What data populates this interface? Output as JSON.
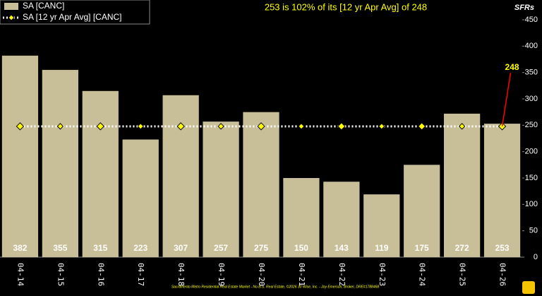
{
  "chart_data": {
    "type": "bar",
    "title": "253 is 102% of its [12 yr Apr Avg] of 248",
    "y_axis_label": "SFRs",
    "callout": "248",
    "footer": "Sacramento Metro Residential Real Estate Market - No B.S. Real Estate, ©2026 30 Wise, Inc. - Joy Emerson, Broker, DRE#1788468",
    "categories": [
      "04-14",
      "04-15",
      "04-16",
      "04-17",
      "04-18",
      "04-19",
      "04-20",
      "04-21",
      "04-22",
      "04-23",
      "04-24",
      "04-25",
      "04-26"
    ],
    "series": [
      {
        "name": "SA [CANC]",
        "type": "bar",
        "color": "#c8bf98",
        "values": [
          382,
          355,
          315,
          223,
          307,
          257,
          275,
          150,
          143,
          119,
          175,
          272,
          253
        ]
      },
      {
        "name": "SA [12 yr Apr Avg] [CANC]",
        "type": "line",
        "color": "#ffff00",
        "values": [
          248,
          248,
          248,
          248,
          248,
          248,
          248,
          248,
          248,
          248,
          248,
          248,
          248
        ]
      }
    ],
    "ylim": [
      0,
      450
    ],
    "yticks": [
      0,
      50,
      100,
      150,
      200,
      250,
      300,
      350,
      400,
      450
    ],
    "grid": false
  }
}
